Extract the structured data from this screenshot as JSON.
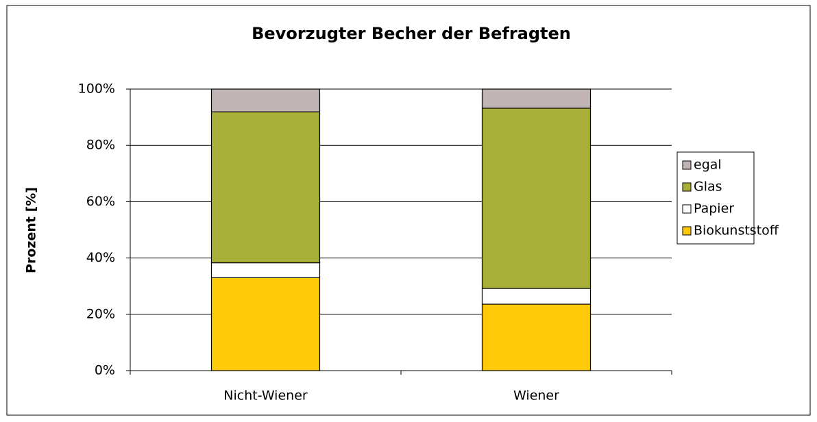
{
  "chart_data": {
    "type": "stacked_bar",
    "title": "Bevorzugter Becher der Befragten",
    "y_label": "Prozent [%]",
    "categories": [
      "Nicht-Wiener",
      "Wiener"
    ],
    "series": [
      {
        "name": "Biokunststoff",
        "color": "#fdc908",
        "values": [
          33,
          23.6
        ]
      },
      {
        "name": "Papier",
        "color": "#ffffff",
        "values": [
          5.3,
          5.6
        ]
      },
      {
        "name": "Glas",
        "color": "#a8b03a",
        "values": [
          53.6,
          64
        ]
      },
      {
        "name": "egal",
        "color": "#c0b4b4",
        "values": [
          8.1,
          6.8
        ]
      }
    ],
    "ylim": [
      0,
      100
    ],
    "yticks": [
      {
        "value": 0,
        "label": "0%"
      },
      {
        "value": 20,
        "label": "20%"
      },
      {
        "value": 40,
        "label": "40%"
      },
      {
        "value": 60,
        "label": "60%"
      },
      {
        "value": 80,
        "label": "80%"
      },
      {
        "value": 100,
        "label": "100%"
      }
    ],
    "grid": true,
    "legend": "right"
  }
}
